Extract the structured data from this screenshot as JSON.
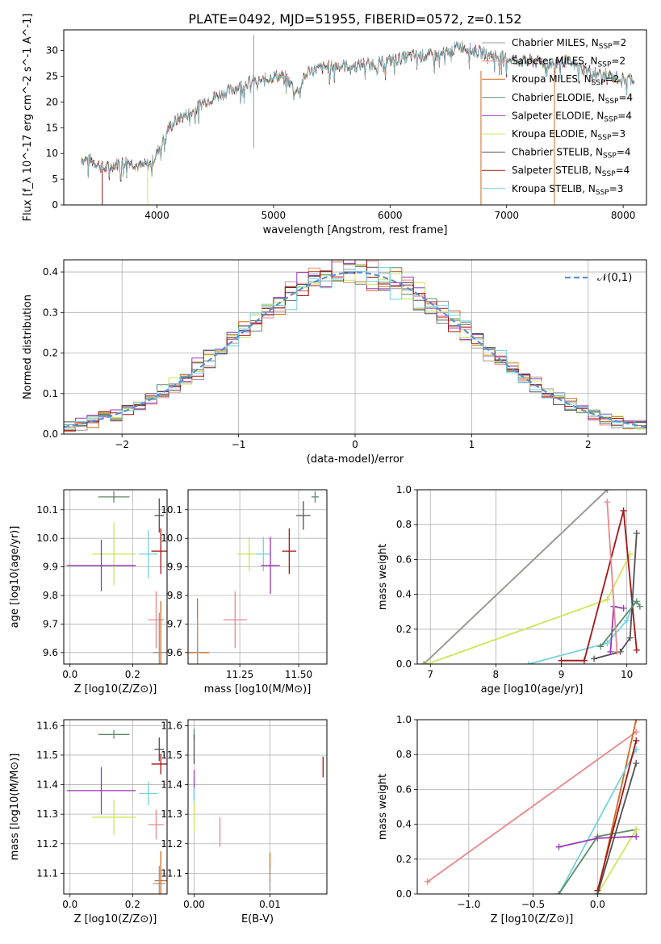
{
  "title": "PLATE=0492, MJD=51955, FIBERID=0572, z=0.152",
  "colors": {
    "chabrier_miles": "#9a9a9a",
    "salpeter_miles": "#e8878c",
    "kroupa_miles": "#d2691e",
    "chabrier_elodie": "#5f8a6a",
    "salpeter_elodie": "#9a37b5",
    "kroupa_elodie": "#cfe557",
    "chabrier_stelib": "#505050",
    "salpeter_stelib": "#a31515",
    "kroupa_stelib": "#76d1df",
    "gauss": "#5b8fd6",
    "grid": "#b0b0b0"
  },
  "chart_data": [
    {
      "id": "spectrum",
      "type": "line",
      "xlabel": "wavelength [Angstrom, rest frame]",
      "ylabel": "Flux [f_λ 10^-17 erg cm^-2 s^-1 A^-1]",
      "xlim": [
        3200,
        8200
      ],
      "ylim": [
        0,
        34
      ],
      "xticks": [
        4000,
        5000,
        6000,
        7000,
        8000
      ],
      "yticks": [
        0,
        5,
        10,
        15,
        20,
        25,
        30
      ],
      "legend_position": "top-right",
      "legend": [
        {
          "label": "Chabrier MILES, N",
          "sub": "SSP",
          "tail": "=2",
          "color_key": "chabrier_miles"
        },
        {
          "label": "Salpeter MILES, N",
          "sub": "SSP",
          "tail": "=2",
          "color_key": "salpeter_miles"
        },
        {
          "label": "Kroupa MILES, N",
          "sub": "SSP",
          "tail": "=2",
          "color_key": "kroupa_miles"
        },
        {
          "label": "Chabrier ELODIE, N",
          "sub": "SSP",
          "tail": "=4",
          "color_key": "chabrier_elodie"
        },
        {
          "label": "Salpeter ELODIE, N",
          "sub": "SSP",
          "tail": "=4",
          "color_key": "salpeter_elodie"
        },
        {
          "label": "Kroupa ELODIE, N",
          "sub": "SSP",
          "tail": "=3",
          "color_key": "kroupa_elodie"
        },
        {
          "label": "Chabrier STELIB, N",
          "sub": "SSP",
          "tail": "=4",
          "color_key": "chabrier_stelib"
        },
        {
          "label": "Salpeter STELIB, N",
          "sub": "SSP",
          "tail": "=4",
          "color_key": "salpeter_stelib"
        },
        {
          "label": "Kroupa STELIB, N",
          "sub": "SSP",
          "tail": "=3",
          "color_key": "kroupa_stelib"
        }
      ],
      "continuum": [
        [
          3350,
          9
        ],
        [
          3450,
          8.5
        ],
        [
          3550,
          7
        ],
        [
          3650,
          8
        ],
        [
          3750,
          8.5
        ],
        [
          3850,
          7.5
        ],
        [
          3950,
          8
        ],
        [
          4000,
          10
        ],
        [
          4100,
          15
        ],
        [
          4200,
          17
        ],
        [
          4300,
          18
        ],
        [
          4400,
          20
        ],
        [
          4500,
          21
        ],
        [
          4600,
          22
        ],
        [
          4700,
          23
        ],
        [
          4800,
          24
        ],
        [
          4900,
          24
        ],
        [
          5000,
          25
        ],
        [
          5100,
          25
        ],
        [
          5200,
          22
        ],
        [
          5300,
          26
        ],
        [
          5400,
          26.5
        ],
        [
          5500,
          27
        ],
        [
          5600,
          27
        ],
        [
          5700,
          27
        ],
        [
          5800,
          27.5
        ],
        [
          5900,
          27.5
        ],
        [
          6000,
          28
        ],
        [
          6100,
          28.5
        ],
        [
          6200,
          29
        ],
        [
          6300,
          29
        ],
        [
          6400,
          29
        ],
        [
          6500,
          29.5
        ],
        [
          6600,
          31
        ],
        [
          6700,
          30
        ],
        [
          6800,
          29.5
        ],
        [
          6900,
          29
        ],
        [
          7000,
          28.5
        ],
        [
          7100,
          28
        ],
        [
          7200,
          28
        ],
        [
          7300,
          27.5
        ],
        [
          7400,
          27.5
        ],
        [
          7500,
          28
        ],
        [
          7600,
          27
        ],
        [
          7700,
          26
        ],
        [
          7800,
          25.5
        ],
        [
          7900,
          25
        ],
        [
          8000,
          24.5
        ],
        [
          8100,
          24.5
        ]
      ],
      "spikes": [
        {
          "x": 4830,
          "y": 33
        },
        {
          "x": 4830,
          "y": 11
        }
      ],
      "drops": [
        {
          "x": 3530,
          "from": 7,
          "color_key": "salpeter_stelib"
        },
        {
          "x": 3920,
          "from": 8,
          "color_key": "kroupa_elodie"
        },
        {
          "x": 6780,
          "from": 26,
          "color_key": "kroupa_miles"
        },
        {
          "x": 7410,
          "from": 26,
          "color_key": "kroupa_miles"
        }
      ]
    },
    {
      "id": "residual_hist",
      "type": "histogram",
      "xlabel": "(data-model)/error",
      "ylabel": "Normed distribution",
      "xlim": [
        -2.5,
        2.5
      ],
      "ylim": [
        0,
        0.43
      ],
      "xticks": [
        -2,
        -1,
        0,
        1,
        2
      ],
      "yticks": [
        0,
        0.1,
        0.2,
        0.3,
        0.4
      ],
      "bin_width": 0.1,
      "legend_position": "top-right",
      "legend": "𝒩(0,1)"
    },
    {
      "id": "age_vs_Z",
      "type": "scatter",
      "xlabel": "Z [log10(Z/Z⊙)]",
      "ylabel": "age [log10(age/yr)]",
      "xlim": [
        -0.02,
        0.31
      ],
      "ylim": [
        9.56,
        10.17
      ],
      "xticks": [
        0.0,
        0.2
      ],
      "yticks": [
        9.6,
        9.7,
        9.8,
        9.9,
        10.0,
        10.1
      ],
      "points": [
        {
          "x": 0.14,
          "y": 10.145,
          "xerr": 0.05,
          "yerr": 0.02,
          "color_key": "chabrier_elodie"
        },
        {
          "x": 0.285,
          "y": 10.08,
          "xerr": 0.015,
          "yerr": 0.06,
          "color_key": "chabrier_stelib"
        },
        {
          "x": 0.29,
          "y": 9.955,
          "xerr": 0.03,
          "yerr": 0.08,
          "color_key": "salpeter_stelib"
        },
        {
          "x": 0.14,
          "y": 9.945,
          "xerr": 0.07,
          "yerr": 0.11,
          "color_key": "kroupa_elodie"
        },
        {
          "x": 0.25,
          "y": 9.945,
          "xerr": 0.03,
          "yerr": 0.085,
          "color_key": "kroupa_stelib"
        },
        {
          "x": 0.1,
          "y": 9.905,
          "xerr": 0.11,
          "yerr": 0.09,
          "color_key": "salpeter_elodie"
        },
        {
          "x": 0.275,
          "y": 9.715,
          "xerr": 0.025,
          "yerr": 0.1,
          "color_key": "salpeter_miles"
        },
        {
          "x": 0.29,
          "y": 9.6,
          "xerr": 0.02,
          "yerr": 0.18,
          "color_key": "kroupa_miles"
        },
        {
          "x": 0.285,
          "y": 9.6,
          "xerr": 0.02,
          "yerr": 0.14,
          "color_key": "chabrier_miles"
        }
      ]
    },
    {
      "id": "age_vs_mass",
      "type": "scatter",
      "xlabel": "mass [log10(M/M⊙)]",
      "ylabel": "",
      "xlim": [
        11.03,
        11.62
      ],
      "ylim": [
        9.56,
        10.17
      ],
      "xticks": [
        11.25,
        11.5
      ],
      "yticks": [
        9.6,
        9.7,
        9.8,
        9.9,
        10.0,
        10.1
      ],
      "points": [
        {
          "x": 11.57,
          "y": 10.145,
          "xerr": 0.015,
          "yerr": 0.02,
          "color_key": "chabrier_elodie"
        },
        {
          "x": 11.52,
          "y": 10.08,
          "xerr": 0.03,
          "yerr": 0.05,
          "color_key": "chabrier_stelib"
        },
        {
          "x": 11.46,
          "y": 9.955,
          "xerr": 0.03,
          "yerr": 0.08,
          "color_key": "salpeter_stelib"
        },
        {
          "x": 11.29,
          "y": 9.945,
          "xerr": 0.05,
          "yerr": 0.06,
          "color_key": "kroupa_elodie"
        },
        {
          "x": 11.35,
          "y": 9.945,
          "xerr": 0.03,
          "yerr": 0.06,
          "color_key": "kroupa_stelib"
        },
        {
          "x": 11.38,
          "y": 9.905,
          "xerr": 0.04,
          "yerr": 0.1,
          "color_key": "salpeter_elodie"
        },
        {
          "x": 11.23,
          "y": 9.715,
          "xerr": 0.05,
          "yerr": 0.1,
          "color_key": "salpeter_miles"
        },
        {
          "x": 11.07,
          "y": 9.6,
          "xerr": 0.05,
          "yerr": 0.19,
          "color_key": "kroupa_miles"
        },
        {
          "x": 11.07,
          "y": 9.6,
          "xerr": 0.01,
          "yerr": 0.12,
          "color_key": "chabrier_miles"
        }
      ]
    },
    {
      "id": "weight_vs_age",
      "type": "line",
      "xlabel": "age [log10(age/yr)]",
      "ylabel": "mass weight",
      "xlim": [
        6.8,
        10.3
      ],
      "ylim": [
        0,
        1
      ],
      "xticks": [
        7,
        8,
        9,
        10
      ],
      "yticks": [
        0.0,
        0.2,
        0.4,
        0.6,
        0.8,
        1.0
      ],
      "series": [
        {
          "color_key": "kroupa_miles",
          "points": [
            [
              6.9,
              0.0
            ],
            [
              9.7,
              1.0
            ]
          ]
        },
        {
          "color_key": "chabrier_miles",
          "points": [
            [
              6.9,
              0.0
            ],
            [
              9.7,
              1.0
            ]
          ]
        },
        {
          "color_key": "kroupa_elodie",
          "points": [
            [
              6.95,
              0.0
            ],
            [
              9.7,
              0.37
            ],
            [
              10.05,
              0.63
            ]
          ]
        },
        {
          "color_key": "kroupa_stelib",
          "points": [
            [
              8.5,
              0.0
            ],
            [
              9.7,
              0.12
            ],
            [
              10.0,
              0.25
            ],
            [
              10.1,
              0.35
            ]
          ]
        },
        {
          "color_key": "salpeter_stelib",
          "points": [
            [
              9.0,
              0.02
            ],
            [
              9.35,
              0.02
            ],
            [
              9.95,
              0.88
            ],
            [
              10.15,
              0.08
            ]
          ]
        },
        {
          "color_key": "chabrier_stelib",
          "points": [
            [
              9.5,
              0.03
            ],
            [
              9.9,
              0.07
            ],
            [
              10.05,
              0.15
            ],
            [
              10.15,
              0.75
            ]
          ]
        },
        {
          "color_key": "salpeter_elodie",
          "points": [
            [
              9.75,
              0.07
            ],
            [
              9.8,
              0.33
            ],
            [
              9.95,
              0.32
            ]
          ]
        },
        {
          "color_key": "chabrier_elodie",
          "points": [
            [
              9.6,
              0.1
            ],
            [
              10.15,
              0.36
            ],
            [
              10.2,
              0.33
            ]
          ]
        },
        {
          "color_key": "salpeter_miles",
          "points": [
            [
              9.7,
              0.93
            ],
            [
              9.85,
              0.07
            ]
          ]
        }
      ]
    },
    {
      "id": "mass_vs_Z",
      "type": "scatter",
      "xlabel": "Z [log10(Z/Z⊙)]",
      "ylabel": "mass [log10(M/M⊙)]",
      "xlim": [
        -0.02,
        0.31
      ],
      "ylim": [
        11.03,
        11.62
      ],
      "xticks": [
        0.0,
        0.2
      ],
      "yticks": [
        11.1,
        11.2,
        11.3,
        11.4,
        11.5,
        11.6
      ],
      "points": [
        {
          "x": 0.14,
          "y": 11.57,
          "xerr": 0.05,
          "yerr": 0.015,
          "color_key": "chabrier_elodie"
        },
        {
          "x": 0.285,
          "y": 11.52,
          "xerr": 0.015,
          "yerr": 0.04,
          "color_key": "chabrier_stelib"
        },
        {
          "x": 0.29,
          "y": 11.47,
          "xerr": 0.03,
          "yerr": 0.035,
          "color_key": "salpeter_stelib"
        },
        {
          "x": 0.1,
          "y": 11.38,
          "xerr": 0.11,
          "yerr": 0.08,
          "color_key": "salpeter_elodie"
        },
        {
          "x": 0.25,
          "y": 11.37,
          "xerr": 0.03,
          "yerr": 0.04,
          "color_key": "kroupa_stelib"
        },
        {
          "x": 0.14,
          "y": 11.29,
          "xerr": 0.07,
          "yerr": 0.06,
          "color_key": "kroupa_elodie"
        },
        {
          "x": 0.275,
          "y": 11.265,
          "xerr": 0.025,
          "yerr": 0.05,
          "color_key": "salpeter_miles"
        },
        {
          "x": 0.29,
          "y": 11.075,
          "xerr": 0.02,
          "yerr": 0.1,
          "color_key": "kroupa_miles"
        },
        {
          "x": 0.285,
          "y": 11.065,
          "xerr": 0.02,
          "yerr": 0.06,
          "color_key": "chabrier_miles"
        }
      ]
    },
    {
      "id": "mass_vs_ebv",
      "type": "scatter",
      "xlabel": "E(B-V)",
      "ylabel": "",
      "xlim": [
        -0.0008,
        0.0175
      ],
      "ylim": [
        11.03,
        11.62
      ],
      "xticks": [
        0.0,
        0.01
      ],
      "yticks": [
        11.1,
        11.2,
        11.3,
        11.4,
        11.5,
        11.6
      ],
      "points": [
        {
          "x": 0.0,
          "y": 11.57,
          "xerr": 0,
          "yerr": 0.02,
          "color_key": "chabrier_elodie"
        },
        {
          "x": 0.0,
          "y": 11.52,
          "xerr": 0,
          "yerr": 0.05,
          "color_key": "chabrier_stelib"
        },
        {
          "x": 0.017,
          "y": 11.46,
          "xerr": 0,
          "yerr": 0.035,
          "color_key": "salpeter_stelib"
        },
        {
          "x": 0.0,
          "y": 11.4,
          "xerr": 0,
          "yerr": 0.05,
          "color_key": "salpeter_elodie"
        },
        {
          "x": 0.0,
          "y": 11.35,
          "xerr": 0,
          "yerr": 0.04,
          "color_key": "kroupa_stelib"
        },
        {
          "x": 0.0,
          "y": 11.29,
          "xerr": 0,
          "yerr": 0.05,
          "color_key": "kroupa_elodie"
        },
        {
          "x": 0.0034,
          "y": 11.24,
          "xerr": 0,
          "yerr": 0.05,
          "color_key": "salpeter_miles"
        },
        {
          "x": 0.01,
          "y": 11.12,
          "xerr": 0,
          "yerr": 0.05,
          "color_key": "kroupa_miles"
        },
        {
          "x": 0.01,
          "y": 11.08,
          "xerr": 0,
          "yerr": 0.04,
          "color_key": "chabrier_miles"
        }
      ]
    },
    {
      "id": "weight_vs_Z",
      "type": "line",
      "xlabel": "Z [log10(Z/Z⊙)]",
      "ylabel": "mass weight",
      "xlim": [
        -1.4,
        0.38
      ],
      "ylim": [
        0,
        1
      ],
      "xticks": [
        -1.0,
        -0.5,
        0.0
      ],
      "yticks": [
        0.0,
        0.2,
        0.4,
        0.6,
        0.8,
        1.0
      ],
      "series": [
        {
          "color_key": "salpeter_miles",
          "points": [
            [
              -1.32,
              0.07
            ],
            [
              0.3,
              0.93
            ]
          ]
        },
        {
          "color_key": "kroupa_miles",
          "points": [
            [
              0.0,
              0.0
            ],
            [
              0.3,
              1.0
            ]
          ]
        },
        {
          "color_key": "kroupa_stelib",
          "points": [
            [
              -0.3,
              0.0
            ],
            [
              0.3,
              0.83
            ]
          ]
        },
        {
          "color_key": "chabrier_elodie",
          "points": [
            [
              -0.3,
              0.0
            ],
            [
              0.0,
              0.33
            ],
            [
              0.3,
              0.37
            ]
          ]
        },
        {
          "color_key": "kroupa_elodie",
          "points": [
            [
              0.0,
              0.0
            ],
            [
              0.3,
              0.37
            ]
          ]
        },
        {
          "color_key": "salpeter_elodie",
          "points": [
            [
              -0.3,
              0.27
            ],
            [
              0.0,
              0.32
            ],
            [
              0.3,
              0.33
            ]
          ]
        },
        {
          "color_key": "salpeter_stelib",
          "points": [
            [
              0.0,
              0.02
            ],
            [
              0.3,
              0.88
            ]
          ]
        },
        {
          "color_key": "chabrier_stelib",
          "points": [
            [
              0.0,
              0.0
            ],
            [
              0.3,
              0.75
            ]
          ]
        }
      ]
    }
  ]
}
